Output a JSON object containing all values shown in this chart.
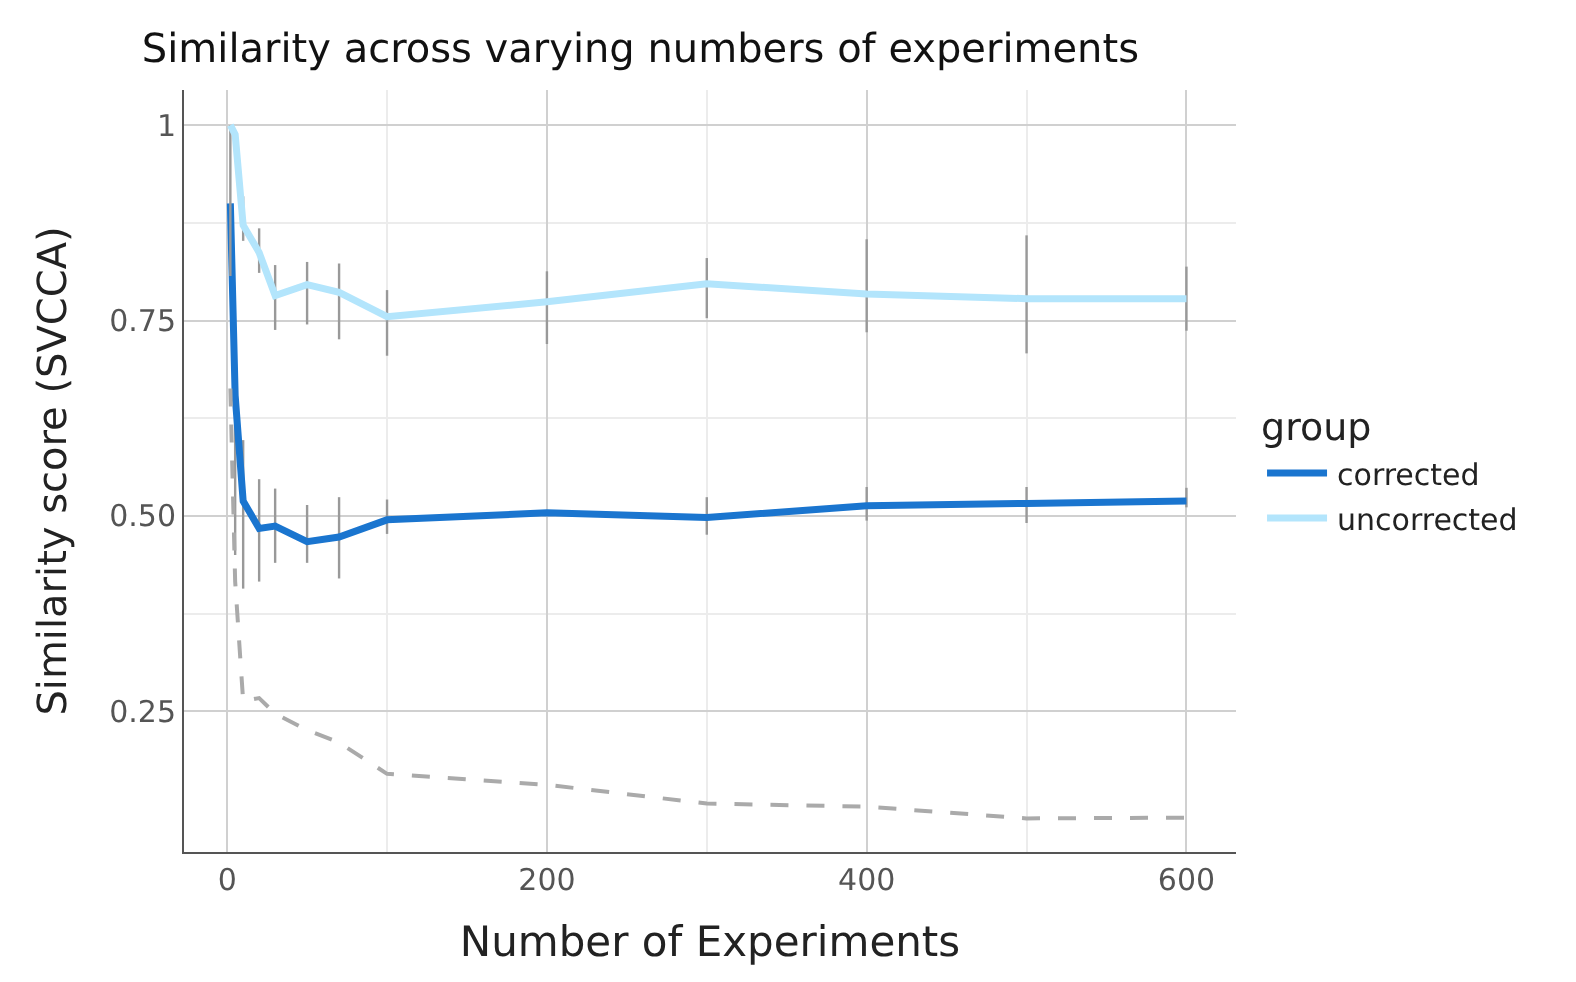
{
  "chart_data": {
    "type": "line",
    "title": "Similarity across varying numbers of experiments",
    "xlabel": "Number of Experiments",
    "ylabel": "Similarity score (SVCCA)",
    "legend_title": "group",
    "x": [
      2,
      5,
      10,
      20,
      30,
      50,
      70,
      100,
      200,
      300,
      400,
      500,
      600
    ],
    "series": [
      {
        "name": "corrected",
        "color": "#1a75cf",
        "values": [
          0.9,
          0.654,
          0.519,
          0.484,
          0.487,
          0.467,
          0.473,
          0.495,
          0.504,
          0.498,
          0.513,
          0.516,
          0.519
        ],
        "errors": [
          null,
          [
            0.45,
            0.67
          ],
          [
            0.407,
            0.597
          ],
          [
            0.416,
            0.547
          ],
          [
            0.44,
            0.535
          ],
          [
            0.44,
            0.514
          ],
          [
            0.42,
            0.524
          ],
          [
            0.477,
            0.521
          ],
          null,
          [
            0.476,
            0.524
          ],
          [
            0.494,
            0.537
          ],
          [
            0.491,
            0.537
          ],
          [
            0.511,
            0.536
          ]
        ]
      },
      {
        "name": "uncorrected",
        "color": "#b3e5fc",
        "values": [
          1.0,
          0.988,
          0.872,
          0.837,
          0.782,
          0.796,
          0.786,
          0.755,
          0.774,
          0.797,
          0.784,
          0.778,
          0.778
        ],
        "errors": [
          [
            0.807,
            1.0
          ],
          null,
          [
            0.852,
            0.909
          ],
          [
            0.811,
            0.868
          ],
          [
            0.738,
            0.821
          ],
          [
            0.745,
            0.825
          ],
          [
            0.726,
            0.823
          ],
          [
            0.705,
            0.789
          ],
          [
            0.72,
            0.813
          ],
          [
            0.753,
            0.83
          ],
          [
            0.735,
            0.854
          ],
          [
            0.708,
            0.859
          ],
          [
            0.737,
            0.819
          ]
        ]
      },
      {
        "color": "#aaaaaa",
        "line_style": "dashed",
        "values": [
          0.663,
          0.416,
          0.263,
          0.267,
          0.247,
          0.226,
          0.21,
          0.17,
          0.156,
          0.132,
          0.128,
          0.113,
          0.114
        ]
      }
    ],
    "xlim": [
      -27,
      631
    ],
    "xticks": [
      0,
      200,
      400,
      600
    ],
    "ylim": [
      0.07,
      1.045
    ],
    "yticks": [
      {
        "value": 1,
        "label": "1"
      },
      {
        "value": 0.75,
        "label": "0.75"
      },
      {
        "value": 0.5,
        "label": "0.50"
      },
      {
        "value": 0.25,
        "label": "0.25"
      }
    ],
    "grid": true,
    "legend": "right",
    "marker": "none",
    "line_style": "solid"
  }
}
